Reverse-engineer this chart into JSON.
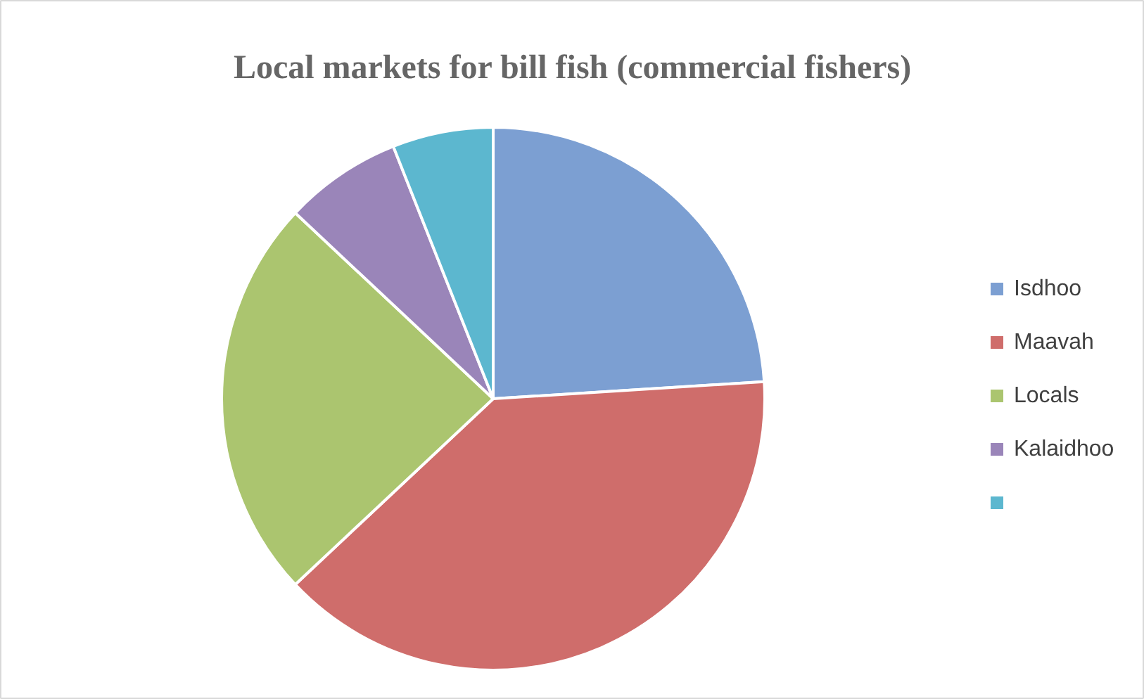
{
  "chart_data": {
    "type": "pie",
    "title": "Local markets for bill fish (commercial fishers)",
    "categories": [
      "Isdhoo",
      "Maavah",
      "Locals",
      "Kalaidhoo",
      null
    ],
    "values": [
      24,
      39,
      24,
      7,
      6
    ],
    "colors": [
      "#7c9fd2",
      "#cf6d6b",
      "#abc56f",
      "#9a85b9",
      "#5cb7cf"
    ],
    "legend": "right"
  }
}
